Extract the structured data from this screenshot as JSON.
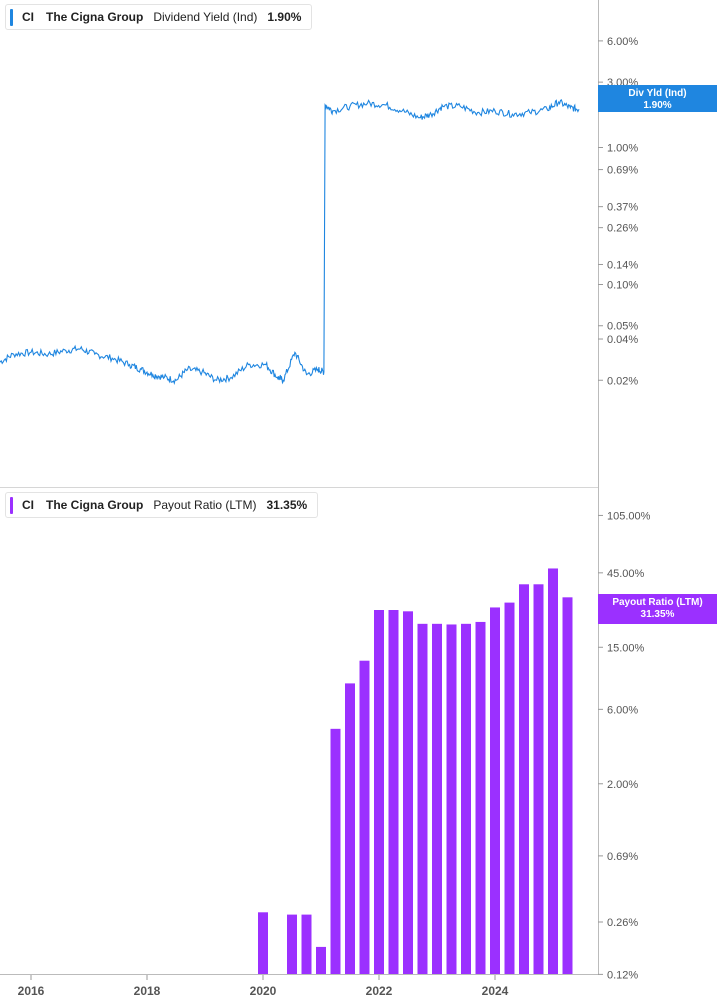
{
  "top_panel": {
    "ticker": "CI",
    "company": "The Cigna Group",
    "metric": "Dividend Yield (Ind)",
    "value": "1.90%",
    "flag_label": "Div Yld (Ind)",
    "flag_value": "1.90%",
    "color": "#1f86e0"
  },
  "bottom_panel": {
    "ticker": "CI",
    "company": "The Cigna Group",
    "metric": "Payout Ratio (LTM)",
    "value": "31.35%",
    "flag_label": "Payout Ratio (LTM)",
    "flag_value": "31.35%",
    "color": "#9b30ff"
  },
  "chart_data": [
    {
      "type": "line",
      "scale": "log",
      "ytick_labels": [
        "6.00%",
        "3.00%",
        "1.00%",
        "0.69%",
        "0.37%",
        "0.26%",
        "0.14%",
        "0.10%",
        "0.05%",
        "0.04%",
        "0.02%"
      ],
      "ytick_values": [
        6.0,
        3.0,
        1.0,
        0.69,
        0.37,
        0.26,
        0.14,
        0.1,
        0.05,
        0.04,
        0.02
      ],
      "series": [
        {
          "x": [
            2015.45,
            2015.7,
            2016.0,
            2016.3,
            2016.6,
            2016.85,
            2017.1,
            2017.4,
            2017.7,
            2017.9,
            2018.1,
            2018.3,
            2018.5,
            2018.7,
            2018.95,
            2019.2,
            2019.45,
            2019.75,
            2020.05,
            2020.25,
            2020.35,
            2020.55,
            2020.75,
            2020.95,
            2021.05,
            2021.07,
            2021.2,
            2021.5,
            2021.8,
            2022.1,
            2022.4,
            2022.7,
            2022.9,
            2023.1,
            2023.4,
            2023.7,
            2024.0,
            2024.3,
            2024.6,
            2024.9,
            2025.1,
            2025.3,
            2025.45
          ],
          "values": [
            0.027,
            0.031,
            0.032,
            0.031,
            0.033,
            0.034,
            0.031,
            0.029,
            0.026,
            0.024,
            0.022,
            0.021,
            0.02,
            0.024,
            0.023,
            0.02,
            0.021,
            0.026,
            0.026,
            0.021,
            0.02,
            0.032,
            0.022,
            0.024,
            0.023,
            2.05,
            1.85,
            2.0,
            2.1,
            2.05,
            1.85,
            1.65,
            1.75,
            2.0,
            2.0,
            1.8,
            1.85,
            1.75,
            1.8,
            1.9,
            2.15,
            1.95,
            1.9
          ]
        }
      ]
    },
    {
      "type": "bar",
      "scale": "log",
      "ytick_labels": [
        "105.00%",
        "45.00%",
        "15.00%",
        "6.00%",
        "2.00%",
        "0.69%",
        "0.26%",
        "0.12%"
      ],
      "ytick_values": [
        105.0,
        45.0,
        15.0,
        6.0,
        2.0,
        0.69,
        0.26,
        0.12
      ],
      "series": [
        {
          "x": [
            2020.0,
            2020.5,
            2020.75,
            2021.0,
            2021.25,
            2021.5,
            2021.75,
            2022.0,
            2022.25,
            2022.5,
            2022.75,
            2023.0,
            2023.25,
            2023.5,
            2023.75,
            2024.0,
            2024.25,
            2024.5,
            2024.75,
            2025.0,
            2025.25
          ],
          "values": [
            0.3,
            0.29,
            0.29,
            0.18,
            4.5,
            8.8,
            12.3,
            26.0,
            26.0,
            25.5,
            21.2,
            21.2,
            21.0,
            21.2,
            21.8,
            27.0,
            29.0,
            38.0,
            38.0,
            48.0,
            31.35
          ]
        }
      ]
    }
  ],
  "x_axis": {
    "tick_labels": [
      "2016",
      "2018",
      "2020",
      "2022",
      "2024"
    ],
    "tick_values": [
      2016,
      2018,
      2020,
      2022,
      2024
    ]
  }
}
